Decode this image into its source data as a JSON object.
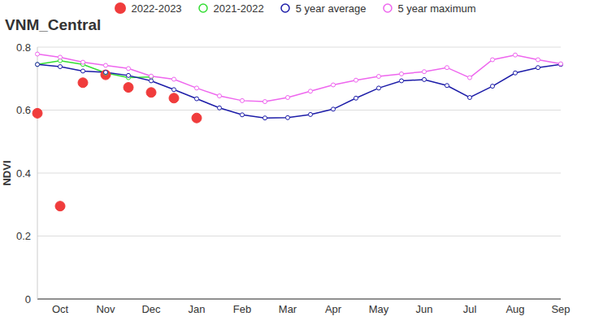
{
  "chart_data": {
    "type": "line",
    "title": "VNM_Central",
    "y_label": "NDVI",
    "categories": [
      null,
      "Oct",
      null,
      "Nov",
      null,
      "Dec",
      null,
      "Jan",
      null,
      "Feb",
      null,
      "Mar",
      null,
      "Apr",
      null,
      "May",
      null,
      "Jun",
      null,
      "Jul",
      null,
      "Aug",
      null,
      "Sep"
    ],
    "series": [
      {
        "name": "2022-2023",
        "type": "scatter",
        "marker": "circle",
        "color": "#f03c3c",
        "values": [
          0.59,
          0.295,
          0.687,
          0.712,
          0.672,
          0.656,
          0.638,
          0.575,
          null,
          null,
          null,
          null,
          null,
          null,
          null,
          null,
          null,
          null,
          null,
          null,
          null,
          null,
          null,
          null
        ]
      },
      {
        "name": "2021-2022",
        "type": "line",
        "marker": "circle",
        "color": "#33dd33",
        "values": [
          0.745,
          0.757,
          0.745,
          0.718,
          0.703,
          0.705,
          null,
          null,
          null,
          null,
          null,
          null,
          null,
          null,
          null,
          null,
          null,
          null,
          null,
          null,
          null,
          null,
          null,
          null
        ]
      },
      {
        "name": "5 year average",
        "type": "line",
        "marker": "circle",
        "color": "#1c1ca8",
        "values": [
          0.745,
          0.738,
          0.724,
          0.72,
          0.71,
          0.693,
          0.665,
          0.636,
          0.607,
          0.585,
          0.575,
          0.576,
          0.586,
          0.603,
          0.638,
          0.67,
          0.693,
          0.697,
          0.678,
          0.64,
          0.676,
          0.718,
          0.735,
          0.745
        ]
      },
      {
        "name": "5 year maximum",
        "type": "line",
        "marker": "circle",
        "color": "#ee66ee",
        "values": [
          0.778,
          0.768,
          0.752,
          0.742,
          0.732,
          0.708,
          0.698,
          0.67,
          0.645,
          0.63,
          0.627,
          0.64,
          0.66,
          0.68,
          0.695,
          0.707,
          0.715,
          0.722,
          0.735,
          0.703,
          0.76,
          0.775,
          0.76,
          0.747
        ]
      }
    ],
    "ylim": [
      0,
      0.8
    ],
    "yticks": [
      0,
      0.2,
      0.4,
      0.6,
      0.8
    ],
    "grid": true,
    "legend": "top"
  }
}
